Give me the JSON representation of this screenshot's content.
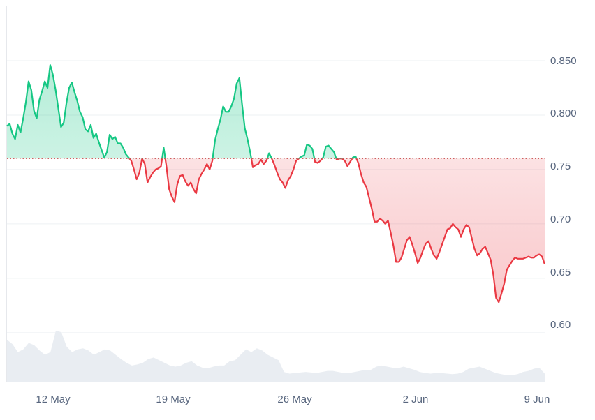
{
  "chart_data": {
    "type": "line",
    "title": "",
    "xlabel": "",
    "ylabel": "",
    "x_tick_labels": [
      "12 May",
      "19 May",
      "26 May",
      "2 Jun",
      "9 Jun"
    ],
    "y_tick_labels": [
      "0.850",
      "0.800",
      "0.75",
      "0.70",
      "0.65",
      "0.60"
    ],
    "y_ticks": [
      0.85,
      0.8,
      0.75,
      0.7,
      0.65,
      0.6
    ],
    "ylim": [
      0.555,
      0.9
    ],
    "baseline": 0.76,
    "colors": {
      "above": "#16c784",
      "below": "#ea3943",
      "volume": "#e9edf2"
    },
    "price": [
      0.79,
      0.792,
      0.783,
      0.778,
      0.791,
      0.784,
      0.797,
      0.812,
      0.831,
      0.823,
      0.804,
      0.797,
      0.814,
      0.822,
      0.831,
      0.825,
      0.846,
      0.837,
      0.823,
      0.806,
      0.789,
      0.793,
      0.811,
      0.825,
      0.83,
      0.821,
      0.813,
      0.803,
      0.798,
      0.787,
      0.785,
      0.791,
      0.779,
      0.783,
      0.775,
      0.768,
      0.761,
      0.766,
      0.782,
      0.778,
      0.78,
      0.774,
      0.774,
      0.77,
      0.764,
      0.761,
      0.758,
      0.75,
      0.741,
      0.747,
      0.76,
      0.755,
      0.738,
      0.743,
      0.747,
      0.75,
      0.751,
      0.753,
      0.77,
      0.753,
      0.732,
      0.725,
      0.72,
      0.736,
      0.744,
      0.745,
      0.739,
      0.735,
      0.738,
      0.732,
      0.728,
      0.741,
      0.746,
      0.75,
      0.755,
      0.75,
      0.758,
      0.777,
      0.787,
      0.796,
      0.808,
      0.803,
      0.803,
      0.808,
      0.815,
      0.829,
      0.834,
      0.81,
      0.788,
      0.778,
      0.766,
      0.752,
      0.754,
      0.755,
      0.759,
      0.755,
      0.758,
      0.765,
      0.76,
      0.754,
      0.747,
      0.741,
      0.738,
      0.733,
      0.74,
      0.744,
      0.75,
      0.758,
      0.76,
      0.762,
      0.763,
      0.773,
      0.772,
      0.769,
      0.757,
      0.756,
      0.758,
      0.761,
      0.771,
      0.772,
      0.769,
      0.766,
      0.759,
      0.76,
      0.76,
      0.758,
      0.753,
      0.757,
      0.761,
      0.762,
      0.756,
      0.746,
      0.738,
      0.734,
      0.724,
      0.714,
      0.702,
      0.702,
      0.705,
      0.703,
      0.7,
      0.703,
      0.692,
      0.68,
      0.665,
      0.665,
      0.669,
      0.677,
      0.685,
      0.688,
      0.681,
      0.673,
      0.664,
      0.669,
      0.676,
      0.682,
      0.684,
      0.677,
      0.671,
      0.668,
      0.674,
      0.681,
      0.688,
      0.695,
      0.696,
      0.7,
      0.697,
      0.695,
      0.688,
      0.695,
      0.699,
      0.697,
      0.687,
      0.677,
      0.671,
      0.673,
      0.677,
      0.679,
      0.673,
      0.667,
      0.653,
      0.632,
      0.628,
      0.636,
      0.645,
      0.658,
      0.662,
      0.666,
      0.669,
      0.668,
      0.668,
      0.668,
      0.669,
      0.67,
      0.669,
      0.669,
      0.671,
      0.672,
      0.67,
      0.663
    ],
    "volume_relative": [
      0.78,
      0.7,
      0.55,
      0.6,
      0.72,
      0.68,
      0.58,
      0.5,
      0.55,
      0.95,
      0.92,
      0.65,
      0.55,
      0.6,
      0.62,
      0.58,
      0.5,
      0.55,
      0.6,
      0.58,
      0.5,
      0.42,
      0.35,
      0.3,
      0.32,
      0.35,
      0.42,
      0.45,
      0.4,
      0.35,
      0.3,
      0.28,
      0.3,
      0.35,
      0.38,
      0.3,
      0.26,
      0.25,
      0.28,
      0.3,
      0.3,
      0.38,
      0.4,
      0.5,
      0.6,
      0.55,
      0.62,
      0.58,
      0.5,
      0.45,
      0.4,
      0.18,
      0.15,
      0.16,
      0.17,
      0.18,
      0.17,
      0.16,
      0.18,
      0.2,
      0.2,
      0.18,
      0.16,
      0.16,
      0.18,
      0.2,
      0.22,
      0.22,
      0.28,
      0.3,
      0.28,
      0.26,
      0.25,
      0.28,
      0.25,
      0.22,
      0.18,
      0.16,
      0.15,
      0.16,
      0.16,
      0.15,
      0.14,
      0.15,
      0.18,
      0.24,
      0.26,
      0.28,
      0.24,
      0.2,
      0.16,
      0.14,
      0.12,
      0.12,
      0.14,
      0.18,
      0.2,
      0.24,
      0.26,
      0.15
    ]
  }
}
